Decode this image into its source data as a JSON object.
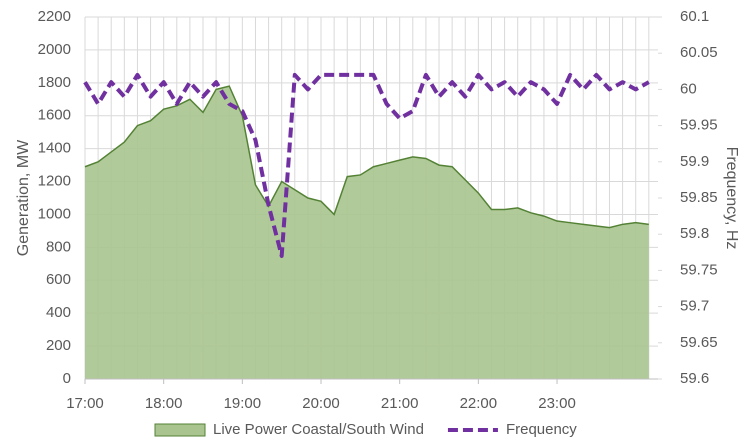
{
  "chart_data": {
    "type": "area-line",
    "x": [
      1020,
      1030,
      1040,
      1050,
      1060,
      1070,
      1080,
      1090,
      1100,
      1110,
      1120,
      1130,
      1140,
      1150,
      1160,
      1170,
      1180,
      1190,
      1200,
      1210,
      1220,
      1230,
      1240,
      1250,
      1260,
      1270,
      1280,
      1290,
      1300,
      1310,
      1320,
      1330,
      1340,
      1350,
      1360,
      1370,
      1380,
      1390,
      1400,
      1410,
      1420,
      1430,
      1440,
      1450
    ],
    "xlim": [
      1020,
      1457
    ],
    "xticks": [
      {
        "value": 1020,
        "label": "17:00"
      },
      {
        "value": 1080,
        "label": "18:00"
      },
      {
        "value": 1140,
        "label": "19:00"
      },
      {
        "value": 1200,
        "label": "20:00"
      },
      {
        "value": 1260,
        "label": "21:00"
      },
      {
        "value": 1320,
        "label": "22:00"
      },
      {
        "value": 1380,
        "label": "23:00"
      }
    ],
    "y_label": "Generation, MW",
    "y2_label": "Frequency, Hz",
    "ylim": [
      0,
      2200
    ],
    "yticks": [
      0,
      200,
      400,
      600,
      800,
      1000,
      1200,
      1400,
      1600,
      1800,
      2000,
      2200
    ],
    "y2lim": [
      59.6,
      60.1
    ],
    "y2ticks": [
      59.6,
      59.65,
      59.7,
      59.75,
      59.8,
      59.85,
      59.9,
      59.95,
      60,
      60.05,
      60.1
    ],
    "grid": true,
    "legend": "bottom",
    "series": [
      {
        "name": "Live Power Coastal/South Wind",
        "kind": "area",
        "color": "#a9c48f",
        "edge_color": "#548235",
        "values": [
          1290,
          1320,
          1380,
          1440,
          1540,
          1570,
          1640,
          1660,
          1700,
          1620,
          1760,
          1780,
          1600,
          1180,
          1050,
          1200,
          1150,
          1100,
          1080,
          1000,
          1230,
          1240,
          1290,
          1310,
          1330,
          1350,
          1340,
          1300,
          1290,
          1210,
          1130,
          1030,
          1030,
          1040,
          1010,
          990,
          960,
          950,
          940,
          930,
          920,
          940,
          950,
          940
        ]
      },
      {
        "name": "Frequency",
        "kind": "line",
        "axis": "y2",
        "color": "#7030a0",
        "dashed": true,
        "values": [
          60.01,
          59.98,
          60.01,
          59.99,
          60.02,
          59.99,
          60.01,
          59.98,
          60.01,
          59.99,
          60.01,
          59.98,
          59.97,
          59.93,
          59.84,
          59.77,
          60.02,
          60.0,
          60.02,
          60.02,
          60.02,
          60.02,
          60.02,
          59.98,
          59.96,
          59.97,
          60.02,
          59.99,
          60.01,
          59.99,
          60.02,
          60.0,
          60.01,
          59.99,
          60.01,
          60.0,
          59.98,
          60.02,
          60.0,
          60.02,
          60.0,
          60.01,
          60.0,
          60.01
        ]
      }
    ]
  }
}
